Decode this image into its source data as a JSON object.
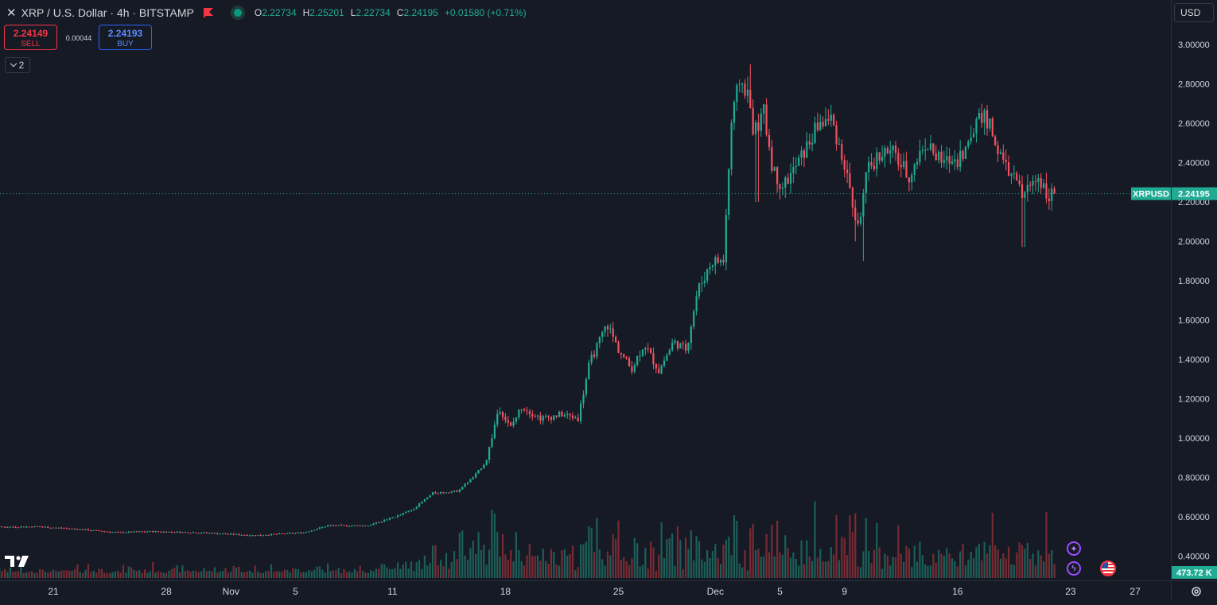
{
  "legend": {
    "symbol_title": "XRP / U.S. Dollar · 4h · BITSTAMP",
    "open_label": "O",
    "open": "2.22734",
    "high_label": "H",
    "high": "2.25201",
    "low_label": "L",
    "low": "2.22734",
    "close_label": "C",
    "close": "2.24195",
    "change": "+0.01580 (+0.71%)"
  },
  "trade": {
    "sell_price": "2.24149",
    "sell_label": "SELL",
    "spread": "0.00044",
    "buy_price": "2.24193",
    "buy_label": "BUY"
  },
  "indicators_toggle": {
    "count": "2"
  },
  "currency": "USD",
  "price_tag": {
    "symbol": "XRPUSD",
    "price": "2.24195"
  },
  "volume_tag": "473.72 K",
  "colors": {
    "up": "#22ab94",
    "down": "#f7525f",
    "up_volume": "#1c5f58",
    "down_volume": "#7a2b33",
    "background": "#161a25"
  },
  "icons": [
    "close-icon",
    "flag-icon",
    "status-dot-icon",
    "chevron-down-icon",
    "tradingview-logo-icon",
    "sparkle-icon",
    "lightning-icon",
    "us-flag-icon",
    "gear-icon"
  ],
  "chart_data": {
    "type": "candlestick",
    "interval": "4h",
    "ylim": [
      0.3,
      3.08
    ],
    "y_ticks": [
      "3.00000",
      "2.80000",
      "2.60000",
      "2.40000",
      "2.20000",
      "2.00000",
      "1.80000",
      "1.60000",
      "1.40000",
      "1.20000",
      "1.00000",
      "0.80000",
      "0.60000",
      "0.40000"
    ],
    "y_tick_values": [
      3.0,
      2.8,
      2.6,
      2.4,
      2.2,
      2.0,
      1.8,
      1.6,
      1.4,
      1.2,
      1.0,
      0.8,
      0.6,
      0.4
    ],
    "x_ticks": [
      {
        "label": "21",
        "day": 0
      },
      {
        "label": "28",
        "day": 7
      },
      {
        "label": "Nov",
        "day": 11
      },
      {
        "label": "5",
        "day": 15
      },
      {
        "label": "11",
        "day": 21
      },
      {
        "label": "18",
        "day": 28
      },
      {
        "label": "25",
        "day": 35
      },
      {
        "label": "Dec",
        "day": 41
      },
      {
        "label": "5",
        "day": 45
      },
      {
        "label": "9",
        "day": 49
      },
      {
        "label": "16",
        "day": 56
      },
      {
        "label": "23",
        "day": 63
      },
      {
        "label": "27",
        "day": 67
      }
    ],
    "day_offset_start": -6.5,
    "last_price": 2.24195,
    "close_path": [
      {
        "day": -6.5,
        "close": 0.545
      },
      {
        "day": -1.0,
        "close": 0.55
      },
      {
        "day": 1.0,
        "close": 0.54
      },
      {
        "day": 4.0,
        "close": 0.52
      },
      {
        "day": 6.0,
        "close": 0.525
      },
      {
        "day": 9.0,
        "close": 0.52
      },
      {
        "day": 12.5,
        "close": 0.505
      },
      {
        "day": 15.5,
        "close": 0.52
      },
      {
        "day": 17.0,
        "close": 0.555
      },
      {
        "day": 19.5,
        "close": 0.555
      },
      {
        "day": 21.5,
        "close": 0.61
      },
      {
        "day": 22.3,
        "close": 0.64
      },
      {
        "day": 23.5,
        "close": 0.72
      },
      {
        "day": 25.0,
        "close": 0.73
      },
      {
        "day": 26.0,
        "close": 0.8
      },
      {
        "day": 26.8,
        "close": 0.88
      },
      {
        "day": 27.6,
        "close": 1.16
      },
      {
        "day": 28.3,
        "close": 1.05
      },
      {
        "day": 29.0,
        "close": 1.16
      },
      {
        "day": 30.2,
        "close": 1.1
      },
      {
        "day": 31.5,
        "close": 1.12
      },
      {
        "day": 32.5,
        "close": 1.1
      },
      {
        "day": 33.2,
        "close": 1.38
      },
      {
        "day": 34.3,
        "close": 1.58
      },
      {
        "day": 35.0,
        "close": 1.45
      },
      {
        "day": 35.8,
        "close": 1.35
      },
      {
        "day": 36.6,
        "close": 1.48
      },
      {
        "day": 37.5,
        "close": 1.34
      },
      {
        "day": 38.4,
        "close": 1.49
      },
      {
        "day": 39.2,
        "close": 1.45
      },
      {
        "day": 39.9,
        "close": 1.75
      },
      {
        "day": 40.8,
        "close": 1.9
      },
      {
        "day": 41.5,
        "close": 1.9
      },
      {
        "day": 42.0,
        "close": 2.6
      },
      {
        "day": 42.5,
        "close": 2.82
      },
      {
        "day": 43.0,
        "close": 2.75
      },
      {
        "day": 43.4,
        "close": 2.55
      },
      {
        "day": 44.0,
        "close": 2.65
      },
      {
        "day": 44.6,
        "close": 2.35
      },
      {
        "day": 45.2,
        "close": 2.28
      },
      {
        "day": 46.0,
        "close": 2.38
      },
      {
        "day": 46.8,
        "close": 2.5
      },
      {
        "day": 47.4,
        "close": 2.6
      },
      {
        "day": 48.2,
        "close": 2.62
      },
      {
        "day": 48.8,
        "close": 2.45
      },
      {
        "day": 49.3,
        "close": 2.28
      },
      {
        "day": 49.8,
        "close": 2.05
      },
      {
        "day": 50.4,
        "close": 2.35
      },
      {
        "day": 51.2,
        "close": 2.45
      },
      {
        "day": 52.0,
        "close": 2.45
      },
      {
        "day": 53.0,
        "close": 2.33
      },
      {
        "day": 54.0,
        "close": 2.5
      },
      {
        "day": 55.0,
        "close": 2.4
      },
      {
        "day": 56.0,
        "close": 2.42
      },
      {
        "day": 56.8,
        "close": 2.5
      },
      {
        "day": 57.3,
        "close": 2.67
      },
      {
        "day": 58.0,
        "close": 2.58
      },
      {
        "day": 58.8,
        "close": 2.4
      },
      {
        "day": 59.5,
        "close": 2.32
      },
      {
        "day": 60.0,
        "close": 2.23
      },
      {
        "day": 60.5,
        "close": 2.28
      },
      {
        "day": 61.0,
        "close": 2.33
      },
      {
        "day": 61.6,
        "close": 2.24
      },
      {
        "day": 62.0,
        "close": 2.24195
      }
    ],
    "spikes": [
      {
        "day": 49.7,
        "low": 2.0
      },
      {
        "day": 50.2,
        "low": 1.9
      },
      {
        "day": 43.2,
        "high": 2.9
      },
      {
        "day": 43.6,
        "low": 2.2
      },
      {
        "day": 60.1,
        "low": 1.97
      }
    ]
  }
}
